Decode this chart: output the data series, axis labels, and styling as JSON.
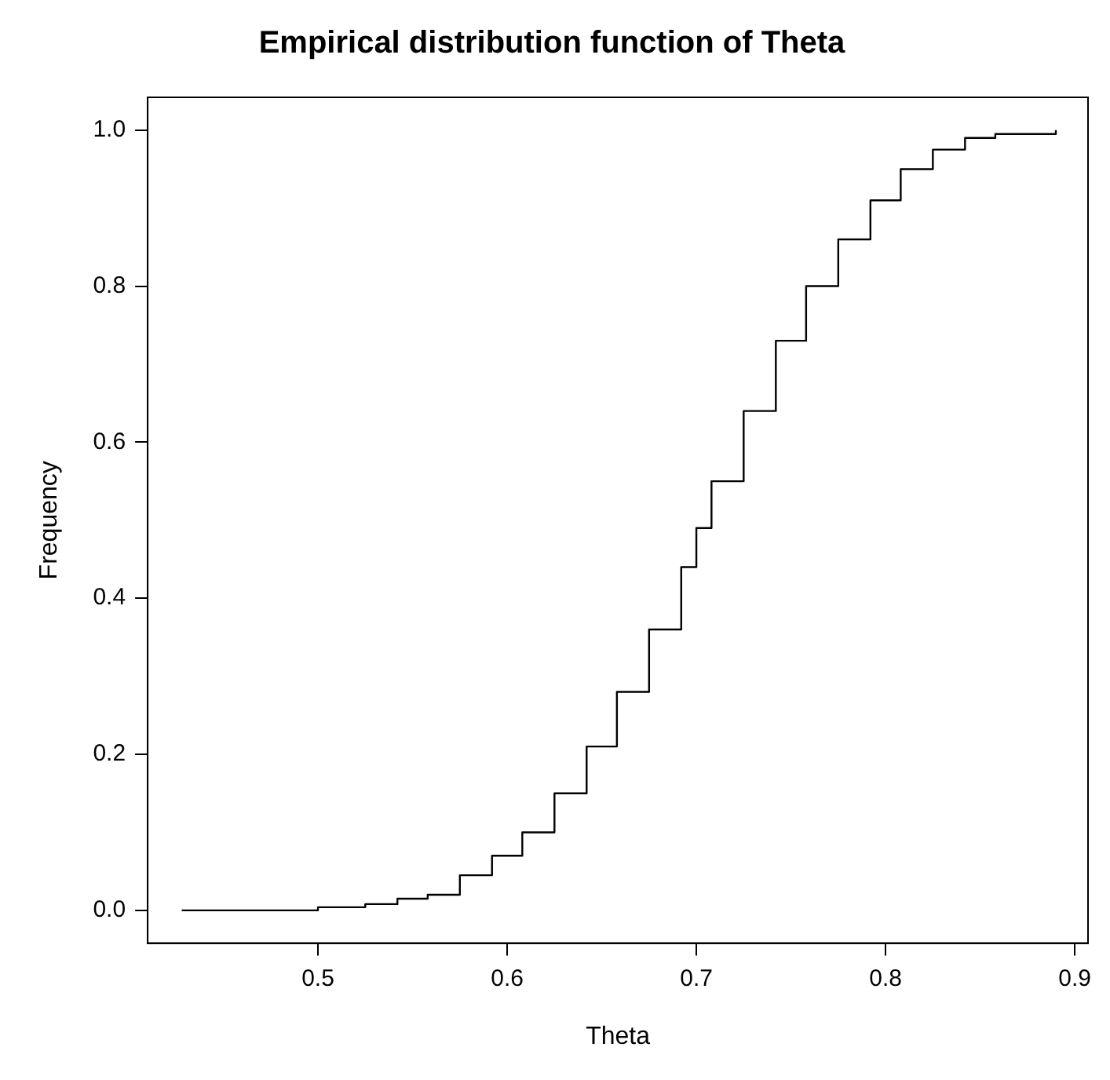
{
  "chart_data": {
    "type": "step",
    "title": "Empirical distribution function of Theta",
    "xlabel": "Theta",
    "ylabel": "Frequency",
    "x": [
      0.428,
      0.483,
      0.5,
      0.525,
      0.542,
      0.558,
      0.575,
      0.592,
      0.608,
      0.625,
      0.642,
      0.658,
      0.675,
      0.692,
      0.7,
      0.708,
      0.725,
      0.742,
      0.758,
      0.775,
      0.792,
      0.808,
      0.825,
      0.842,
      0.858,
      0.89
    ],
    "series": [
      {
        "color": "#000000",
        "values": [
          0,
          0,
          0.004,
          0.008,
          0.015,
          0.02,
          0.045,
          0.07,
          0.1,
          0.15,
          0.21,
          0.28,
          0.36,
          0.44,
          0.49,
          0.55,
          0.64,
          0.73,
          0.8,
          0.86,
          0.91,
          0.95,
          0.975,
          0.99,
          0.995,
          1
        ]
      }
    ],
    "xlim": [
      0.41,
      0.907
    ],
    "xticks": [
      0.5,
      0.6,
      0.7,
      0.8,
      0.9
    ],
    "ylim": [
      -0.042,
      1.042
    ],
    "yticks": [
      {
        "value": 0,
        "label": "0.0"
      },
      0.2,
      0.4,
      0.6,
      0.8,
      {
        "value": 1,
        "label": "1.0"
      }
    ],
    "grid": false,
    "legend": false,
    "marker": "none",
    "line_style": "solid"
  }
}
